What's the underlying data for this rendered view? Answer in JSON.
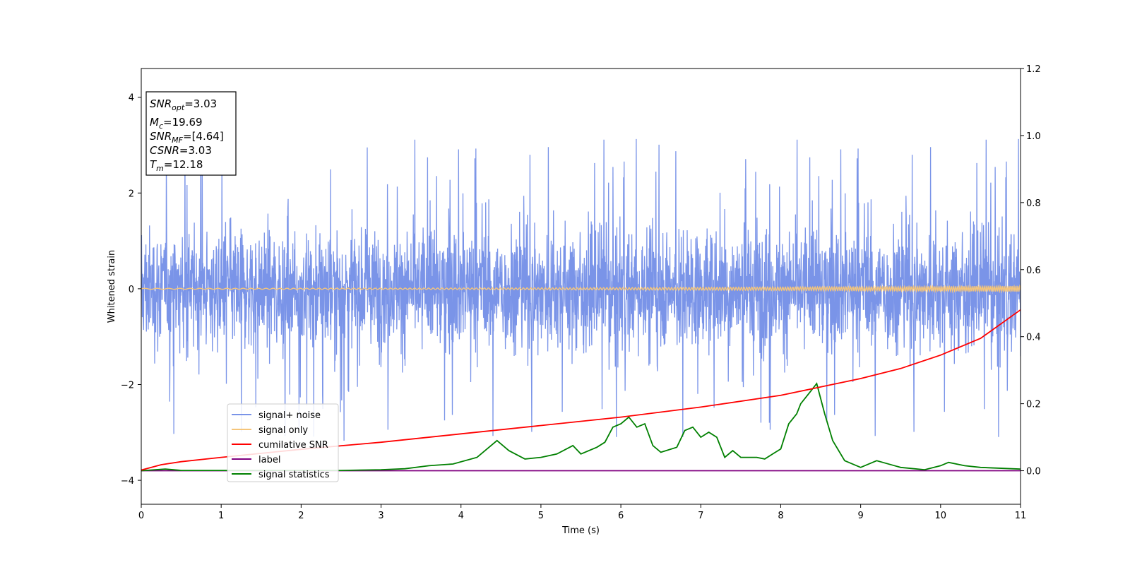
{
  "chart_data": {
    "type": "line",
    "xlabel": "Time (s)",
    "ylabel": "Whitened strain",
    "xlim": [
      0,
      11
    ],
    "ylim": [
      -4.5,
      4.6
    ],
    "y2lim": [
      -0.1,
      1.2
    ],
    "grid": false,
    "x_ticks": [
      "0",
      "1",
      "2",
      "3",
      "4",
      "5",
      "6",
      "7",
      "8",
      "9",
      "10",
      "11"
    ],
    "y_ticks": [
      "4",
      "2",
      "0",
      "−2",
      "−4"
    ],
    "y2_ticks": [
      "1.2",
      "1.0",
      "0.8",
      "0.6",
      "0.4",
      "0.2",
      "0.0"
    ],
    "legend_placement": "lower-left",
    "colors": {
      "signal_noise": "#7a94e8",
      "signal_only": "#f5c57a",
      "cumulative_snr": "#ff0000",
      "label": "#800080",
      "signal_statistics": "#008000"
    },
    "series": [
      {
        "name": "signal+ noise",
        "axis": "left",
        "kind": "noise",
        "core_amplitude": 1.2,
        "spike_max": 3.2,
        "x_range": [
          0,
          11
        ]
      },
      {
        "name": "signal only",
        "axis": "left",
        "kind": "chirp",
        "x_range": [
          0,
          11
        ],
        "amplitude_start": 0.01,
        "amplitude_end": 0.06
      },
      {
        "name": "cumilative SNR",
        "axis": "right",
        "x": [
          0,
          0.25,
          0.5,
          1,
          1.5,
          2,
          3,
          4,
          5,
          6,
          7,
          8,
          8.5,
          9,
          9.5,
          10,
          10.5,
          11
        ],
        "values": [
          0.002,
          0.018,
          0.027,
          0.04,
          0.052,
          0.064,
          0.085,
          0.11,
          0.135,
          0.16,
          0.19,
          0.225,
          0.25,
          0.275,
          0.305,
          0.345,
          0.395,
          0.48
        ]
      },
      {
        "name": "label",
        "axis": "right",
        "x": [
          0,
          11
        ],
        "values": [
          0,
          0
        ]
      },
      {
        "name": "signal statistics",
        "axis": "right",
        "x": [
          0,
          0.3,
          0.5,
          1,
          1.5,
          2,
          2.5,
          3,
          3.3,
          3.6,
          3.9,
          4.2,
          4.45,
          4.6,
          4.8,
          5,
          5.2,
          5.4,
          5.5,
          5.7,
          5.8,
          5.9,
          6,
          6.1,
          6.2,
          6.3,
          6.4,
          6.5,
          6.7,
          6.8,
          6.9,
          7,
          7.1,
          7.2,
          7.3,
          7.4,
          7.5,
          7.7,
          7.8,
          7.9,
          8,
          8.1,
          8.2,
          8.25,
          8.35,
          8.45,
          8.55,
          8.65,
          8.8,
          9,
          9.2,
          9.5,
          9.8,
          10,
          10.1,
          10.3,
          10.5,
          11
        ],
        "values": [
          0,
          0.005,
          0.001,
          0.001,
          0.001,
          0.001,
          0.001,
          0.003,
          0.006,
          0.015,
          0.02,
          0.04,
          0.09,
          0.06,
          0.035,
          0.04,
          0.05,
          0.075,
          0.05,
          0.07,
          0.085,
          0.13,
          0.14,
          0.16,
          0.13,
          0.14,
          0.075,
          0.055,
          0.07,
          0.12,
          0.13,
          0.1,
          0.115,
          0.1,
          0.04,
          0.06,
          0.04,
          0.04,
          0.035,
          0.05,
          0.065,
          0.14,
          0.17,
          0.2,
          0.23,
          0.26,
          0.17,
          0.09,
          0.03,
          0.01,
          0.03,
          0.01,
          0.003,
          0.015,
          0.025,
          0.015,
          0.01,
          0.005
        ]
      }
    ],
    "annotation": [
      {
        "sym": "SNR",
        "sub": "opt",
        "value": "=3.03"
      },
      {
        "sym": "M",
        "sub": "c",
        "value": "=19.69"
      },
      {
        "sym": "SNR",
        "sub": "MF",
        "value": "=[4.64]"
      },
      {
        "sym": "CSNR",
        "sub": "",
        "value": "=3.03"
      },
      {
        "sym": "T",
        "sub": "m",
        "value": "=12.18"
      }
    ]
  }
}
